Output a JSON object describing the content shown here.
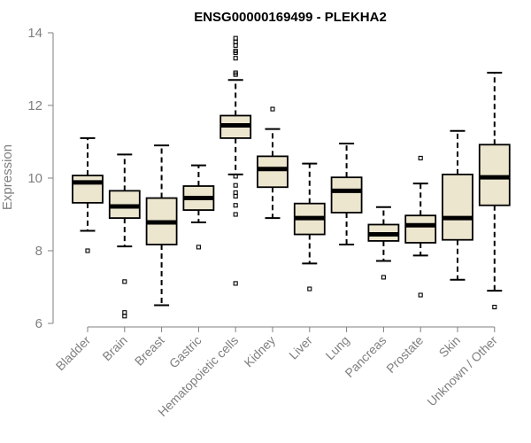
{
  "chart_data": {
    "type": "boxplot",
    "title": "ENSG00000169499 - PLEKHA2",
    "xlabel": "",
    "ylabel": "Expression",
    "ylim": [
      6,
      14
    ],
    "yticks": [
      6,
      8,
      10,
      12,
      14
    ],
    "box_fill": "#ede6cf",
    "categories": [
      "Bladder",
      "Brain",
      "Breast",
      "Gastric",
      "Hematopoietic cells",
      "Kidney",
      "Liver",
      "Lung",
      "Pancreas",
      "Prostate",
      "Skin",
      "Unknown / Other"
    ],
    "boxes": [
      {
        "whisker_low": 8.55,
        "q1": 9.32,
        "median": 9.88,
        "q3": 10.07,
        "whisker_high": 11.1,
        "outliers": [
          8.0
        ]
      },
      {
        "whisker_low": 8.12,
        "q1": 8.9,
        "median": 9.22,
        "q3": 9.65,
        "whisker_high": 10.65,
        "outliers": [
          7.15,
          6.3,
          6.2
        ]
      },
      {
        "whisker_low": 6.5,
        "q1": 8.17,
        "median": 8.78,
        "q3": 9.45,
        "whisker_high": 10.9,
        "outliers": []
      },
      {
        "whisker_low": 8.78,
        "q1": 9.12,
        "median": 9.45,
        "q3": 9.78,
        "whisker_high": 10.35,
        "outliers": [
          8.1
        ]
      },
      {
        "whisker_low": 10.1,
        "q1": 11.1,
        "median": 11.45,
        "q3": 11.72,
        "whisker_high": 12.7,
        "outliers": [
          13.85,
          13.75,
          13.65,
          13.5,
          13.45,
          13.3,
          12.9,
          12.85,
          10.05,
          9.8,
          9.6,
          9.5,
          9.25,
          9.0,
          7.1
        ]
      },
      {
        "whisker_low": 8.9,
        "q1": 9.75,
        "median": 10.25,
        "q3": 10.6,
        "whisker_high": 11.35,
        "outliers": [
          11.9
        ]
      },
      {
        "whisker_low": 7.65,
        "q1": 8.45,
        "median": 8.9,
        "q3": 9.3,
        "whisker_high": 10.4,
        "outliers": [
          6.95
        ]
      },
      {
        "whisker_low": 8.17,
        "q1": 9.05,
        "median": 9.65,
        "q3": 10.02,
        "whisker_high": 10.95,
        "outliers": []
      },
      {
        "whisker_low": 7.72,
        "q1": 8.27,
        "median": 8.45,
        "q3": 8.72,
        "whisker_high": 9.2,
        "outliers": [
          7.27
        ]
      },
      {
        "whisker_low": 7.87,
        "q1": 8.22,
        "median": 8.7,
        "q3": 8.97,
        "whisker_high": 9.85,
        "outliers": [
          10.55,
          6.78
        ]
      },
      {
        "whisker_low": 7.2,
        "q1": 8.3,
        "median": 8.9,
        "q3": 10.1,
        "whisker_high": 11.3,
        "outliers": []
      },
      {
        "whisker_low": 6.9,
        "q1": 9.25,
        "median": 10.02,
        "q3": 10.92,
        "whisker_high": 12.9,
        "outliers": [
          6.45
        ]
      }
    ]
  }
}
